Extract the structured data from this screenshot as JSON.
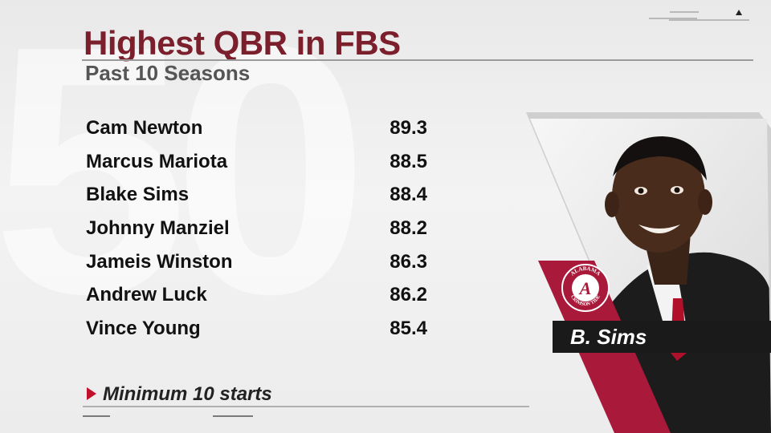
{
  "title": "Highest QBR in FBS",
  "subtitle": "Past 10 Seasons",
  "rows": [
    {
      "name": "Cam Newton",
      "value": "89.3"
    },
    {
      "name": "Marcus Mariota",
      "value": "88.5"
    },
    {
      "name": "Blake Sims",
      "value": "88.4"
    },
    {
      "name": "Johnny Manziel",
      "value": "88.2"
    },
    {
      "name": "Jameis Winston",
      "value": "86.3"
    },
    {
      "name": "Andrew Luck",
      "value": "86.2"
    },
    {
      "name": "Vince Young",
      "value": "85.4"
    }
  ],
  "footnote": "Minimum 10 starts",
  "player_tag": "B. Sims",
  "logo": {
    "top_text": "ALABAMA",
    "bottom_text": "CRIMSON TIDE",
    "letter": "A"
  },
  "colors": {
    "title": "#7a1f2b",
    "accent": "#c0102b",
    "crimson": "#a8193a"
  }
}
